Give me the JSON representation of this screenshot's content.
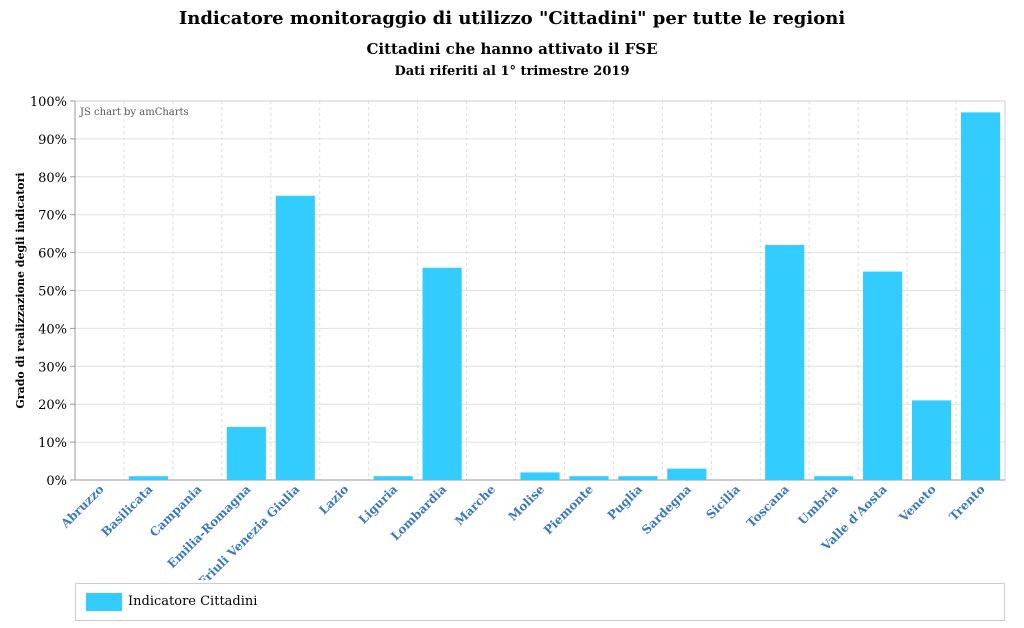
{
  "titles": {
    "main": "Indicatore monitoraggio di utilizzo \"Cittadini\" per tutte le regioni",
    "sub": "Cittadini che hanno attivato il FSE",
    "note": "Dati riferiti al 1° trimestre 2019"
  },
  "credit": "JS chart by amCharts",
  "colors": {
    "bar": "#33ccff",
    "category_label": "#3a78c4"
  },
  "legend": {
    "label": "Indicatore Cittadini",
    "placement": "bottom"
  },
  "chart_data": {
    "type": "bar",
    "title": "Indicatore monitoraggio di utilizzo \"Cittadini\" per tutte le regioni",
    "subtitle": "Cittadini che hanno attivato il FSE",
    "ylabel": "Grado di realizzazione degli indicatori",
    "xlabel": "",
    "ylim": [
      0,
      100
    ],
    "ytick_step": 10,
    "ytick_format": "percent",
    "grid": true,
    "categories": [
      "Abruzzo",
      "Basilicata",
      "Campania",
      "Emilia-Romagna",
      "Friuli Venezia Giulia",
      "Lazio",
      "Liguria",
      "Lombardia",
      "Marche",
      "Molise",
      "Piemonte",
      "Puglia",
      "Sardegna",
      "Sicilia",
      "Toscana",
      "Umbria",
      "Valle d'Aosta",
      "Veneto",
      "Trento"
    ],
    "series": [
      {
        "name": "Indicatore Cittadini",
        "values": [
          0,
          1,
          0,
          14,
          75,
          0,
          1,
          56,
          0,
          2,
          1,
          1,
          3,
          0,
          62,
          1,
          55,
          21,
          97
        ]
      }
    ]
  }
}
